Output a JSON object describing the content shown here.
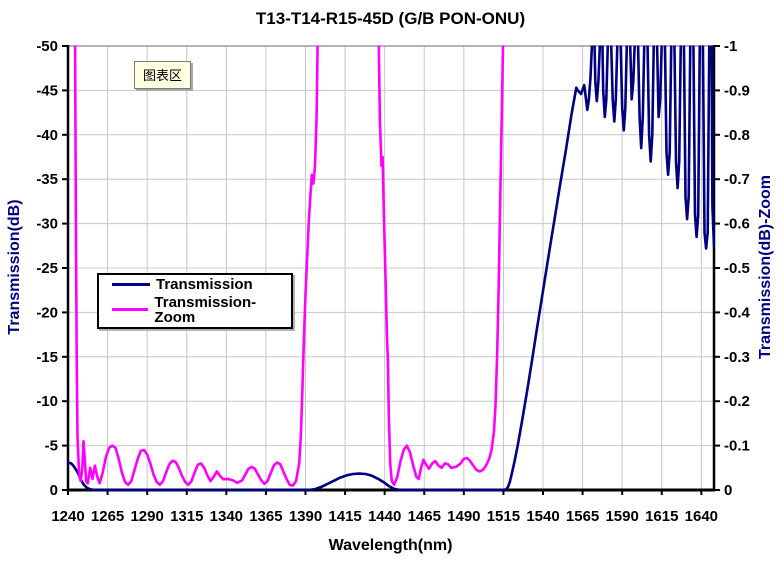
{
  "title": "T13-T14-R15-45D (G/B PON-ONU)",
  "tooltip": {
    "text": "图表区"
  },
  "legend": {
    "position": "inside-left",
    "items": [
      {
        "label": "Transmission",
        "color": "#000080"
      },
      {
        "label": "Transmission-Zoom",
        "color": "#FF00FF"
      }
    ]
  },
  "colors": {
    "background": "#FFFFFF",
    "grid": "#C7C7C7",
    "axis": "#000000",
    "plot_top_border": "#9C9C9C",
    "axis_title": "#000080",
    "tooltip_bg": "#FFFFE1",
    "series_transmission": "#000080",
    "series_transmission_zoom": "#FF00FF"
  },
  "chart_data": {
    "type": "line",
    "title": "T13-T14-R15-45D (G/B PON-ONU)",
    "grid": true,
    "legend_position": "inside-left",
    "x_axis": {
      "label": "Wavelength(nm)",
      "min": 1240,
      "max": 1648,
      "tick_values": [
        1240,
        1265,
        1290,
        1315,
        1340,
        1365,
        1390,
        1415,
        1440,
        1465,
        1490,
        1515,
        1540,
        1565,
        1590,
        1615,
        1640
      ],
      "tick_labels": [
        "1240",
        "1265",
        "1290",
        "1315",
        "1340",
        "1365",
        "1390",
        "1415",
        "1440",
        "1465",
        "1490",
        "1515",
        "1540",
        "1565",
        "1590",
        "1615",
        "1640"
      ]
    },
    "y_left": {
      "label": "Transmission(dB)",
      "min": -50,
      "max": 0,
      "tick_values": [
        -50,
        -45,
        -40,
        -35,
        -30,
        -25,
        -20,
        -15,
        -10,
        -5,
        0
      ],
      "tick_labels": [
        "-50",
        "-45",
        "-40",
        "-35",
        "-30",
        "-25",
        "-20",
        "-15",
        "-10",
        "-5",
        "0"
      ]
    },
    "y_right": {
      "label": "Transmission(dB)-Zoom",
      "min": -1,
      "max": 0,
      "tick_values": [
        -1,
        -0.9,
        -0.8,
        -0.7,
        -0.6,
        -0.5,
        -0.4,
        -0.3,
        -0.2,
        -0.1,
        0
      ],
      "tick_labels": [
        "-1",
        "-0.9",
        "-0.8",
        "-0.7",
        "-0.6",
        "-0.5",
        "-0.4",
        "-0.3",
        "-0.2",
        "-0.1",
        "0"
      ]
    },
    "series": [
      {
        "name": "Transmission",
        "axis": "left",
        "color": "#000080",
        "points": [
          [
            1240,
            -3.1
          ],
          [
            1242,
            -3.0
          ],
          [
            1244,
            -2.6
          ],
          [
            1246,
            -2.0
          ],
          [
            1248,
            -1.2
          ],
          [
            1250,
            -0.6
          ],
          [
            1252,
            -0.25
          ],
          [
            1254,
            -0.08
          ],
          [
            1256,
            -0.02
          ],
          [
            1260,
            0
          ],
          [
            1300,
            0
          ],
          [
            1340,
            0
          ],
          [
            1380,
            0
          ],
          [
            1392,
            0
          ],
          [
            1396,
            -0.1
          ],
          [
            1400,
            -0.35
          ],
          [
            1404,
            -0.7
          ],
          [
            1408,
            -1.05
          ],
          [
            1412,
            -1.4
          ],
          [
            1416,
            -1.65
          ],
          [
            1420,
            -1.8
          ],
          [
            1424,
            -1.85
          ],
          [
            1428,
            -1.8
          ],
          [
            1432,
            -1.6
          ],
          [
            1436,
            -1.25
          ],
          [
            1440,
            -0.8
          ],
          [
            1443,
            -0.4
          ],
          [
            1446,
            -0.12
          ],
          [
            1449,
            -0.02
          ],
          [
            1452,
            0
          ],
          [
            1470,
            0
          ],
          [
            1495,
            0
          ],
          [
            1515,
            0
          ],
          [
            1517,
            -0.1
          ],
          [
            1518,
            -0.4
          ],
          [
            1519,
            -0.9
          ],
          [
            1520,
            -1.6
          ],
          [
            1522,
            -3.2
          ],
          [
            1524,
            -5
          ],
          [
            1527,
            -8
          ],
          [
            1530,
            -11.2
          ],
          [
            1533,
            -14.5
          ],
          [
            1536,
            -18
          ],
          [
            1539,
            -21.3
          ],
          [
            1542,
            -24.7
          ],
          [
            1545,
            -28
          ],
          [
            1548,
            -31.3
          ],
          [
            1551,
            -34.6
          ],
          [
            1554,
            -37.8
          ],
          [
            1556,
            -40
          ],
          [
            1558,
            -42.3
          ],
          [
            1560,
            -44.3
          ],
          [
            1561,
            -45.3
          ],
          [
            1562,
            -45
          ],
          [
            1564,
            -44.6
          ],
          [
            1566,
            -45.6
          ],
          [
            1567,
            -44.2
          ],
          [
            1568,
            -42.8
          ],
          [
            1569,
            -44
          ],
          [
            1570,
            -46.5
          ],
          [
            1571,
            -50.5
          ],
          [
            1572.5,
            -50.5
          ],
          [
            1573,
            -46
          ],
          [
            1574,
            -43.8
          ],
          [
            1575,
            -46
          ],
          [
            1576,
            -50.5
          ],
          [
            1577.5,
            -50.5
          ],
          [
            1578,
            -45
          ],
          [
            1579,
            -42
          ],
          [
            1580,
            -44
          ],
          [
            1581,
            -50.5
          ],
          [
            1583,
            -50.5
          ],
          [
            1584,
            -44
          ],
          [
            1585,
            -41.5
          ],
          [
            1586,
            -44
          ],
          [
            1587,
            -50.5
          ],
          [
            1589,
            -50.5
          ],
          [
            1590,
            -43
          ],
          [
            1591,
            -40.5
          ],
          [
            1592,
            -43
          ],
          [
            1593,
            -50.5
          ],
          [
            1595,
            -50.5
          ],
          [
            1596,
            -44
          ],
          [
            1597,
            -46
          ],
          [
            1598,
            -50.5
          ],
          [
            1600,
            -50.5
          ],
          [
            1601,
            -42
          ],
          [
            1602,
            -38.5
          ],
          [
            1603,
            -42
          ],
          [
            1604,
            -50.5
          ],
          [
            1606,
            -50.5
          ],
          [
            1607,
            -40
          ],
          [
            1608,
            -37
          ],
          [
            1609,
            -40
          ],
          [
            1610,
            -50.5
          ],
          [
            1612,
            -50.5
          ],
          [
            1613,
            -42
          ],
          [
            1614,
            -44
          ],
          [
            1615,
            -50.5
          ],
          [
            1617,
            -50.5
          ],
          [
            1618,
            -38
          ],
          [
            1619,
            -35.5
          ],
          [
            1620,
            -38
          ],
          [
            1621,
            -50.5
          ],
          [
            1623,
            -50.5
          ],
          [
            1624,
            -37
          ],
          [
            1625,
            -34
          ],
          [
            1626,
            -37
          ],
          [
            1627,
            -50.5
          ],
          [
            1629,
            -50.5
          ],
          [
            1630,
            -33
          ],
          [
            1631,
            -30.5
          ],
          [
            1632,
            -33
          ],
          [
            1633,
            -50.5
          ],
          [
            1635,
            -50.5
          ],
          [
            1636,
            -31
          ],
          [
            1637,
            -28.5
          ],
          [
            1638,
            -31
          ],
          [
            1639,
            -50.5
          ],
          [
            1641,
            -50.5
          ],
          [
            1642,
            -29
          ],
          [
            1643,
            -27.2
          ],
          [
            1644,
            -29
          ],
          [
            1645,
            -50.5
          ],
          [
            1646.5,
            -50.5
          ],
          [
            1647,
            -32
          ],
          [
            1648,
            -27.5
          ]
        ]
      },
      {
        "name": "Transmission-Zoom",
        "axis": "right",
        "color": "#FF00FF",
        "points": [
          [
            1243.5,
            -1.4
          ],
          [
            1244.5,
            -1.0
          ],
          [
            1245,
            -0.6
          ],
          [
            1245.5,
            -0.3
          ],
          [
            1246,
            -0.12
          ],
          [
            1247,
            -0.035
          ],
          [
            1248,
            -0.02
          ],
          [
            1249,
            -0.05
          ],
          [
            1249.8,
            -0.11
          ],
          [
            1250.6,
            -0.07
          ],
          [
            1251.4,
            -0.02
          ],
          [
            1252.5,
            -0.015
          ],
          [
            1254,
            -0.05
          ],
          [
            1255.5,
            -0.025
          ],
          [
            1257,
            -0.055
          ],
          [
            1258.5,
            -0.03
          ],
          [
            1260,
            -0.015
          ],
          [
            1262,
            -0.04
          ],
          [
            1264,
            -0.075
          ],
          [
            1266,
            -0.095
          ],
          [
            1268,
            -0.1
          ],
          [
            1270,
            -0.095
          ],
          [
            1272,
            -0.07
          ],
          [
            1274,
            -0.04
          ],
          [
            1276,
            -0.018
          ],
          [
            1278,
            -0.012
          ],
          [
            1280,
            -0.02
          ],
          [
            1282,
            -0.045
          ],
          [
            1284,
            -0.07
          ],
          [
            1286,
            -0.088
          ],
          [
            1288,
            -0.09
          ],
          [
            1290,
            -0.08
          ],
          [
            1292,
            -0.06
          ],
          [
            1294,
            -0.035
          ],
          [
            1296,
            -0.018
          ],
          [
            1298,
            -0.012
          ],
          [
            1300,
            -0.02
          ],
          [
            1302,
            -0.04
          ],
          [
            1304,
            -0.058
          ],
          [
            1306,
            -0.066
          ],
          [
            1308,
            -0.063
          ],
          [
            1310,
            -0.05
          ],
          [
            1312,
            -0.032
          ],
          [
            1314,
            -0.018
          ],
          [
            1316,
            -0.012
          ],
          [
            1318,
            -0.02
          ],
          [
            1320,
            -0.04
          ],
          [
            1322,
            -0.057
          ],
          [
            1324,
            -0.06
          ],
          [
            1326,
            -0.05
          ],
          [
            1328,
            -0.033
          ],
          [
            1330,
            -0.02
          ],
          [
            1332,
            -0.03
          ],
          [
            1334,
            -0.042
          ],
          [
            1336,
            -0.032
          ],
          [
            1338,
            -0.024
          ],
          [
            1341,
            -0.025
          ],
          [
            1344,
            -0.022
          ],
          [
            1347,
            -0.016
          ],
          [
            1350,
            -0.022
          ],
          [
            1352,
            -0.035
          ],
          [
            1354,
            -0.048
          ],
          [
            1356,
            -0.052
          ],
          [
            1358,
            -0.048
          ],
          [
            1360,
            -0.035
          ],
          [
            1362,
            -0.022
          ],
          [
            1364,
            -0.014
          ],
          [
            1366,
            -0.02
          ],
          [
            1368,
            -0.038
          ],
          [
            1370,
            -0.055
          ],
          [
            1372,
            -0.062
          ],
          [
            1374,
            -0.058
          ],
          [
            1376,
            -0.042
          ],
          [
            1378,
            -0.025
          ],
          [
            1380,
            -0.012
          ],
          [
            1382,
            -0.01
          ],
          [
            1384,
            -0.02
          ],
          [
            1386,
            -0.06
          ],
          [
            1387,
            -0.12
          ],
          [
            1388,
            -0.22
          ],
          [
            1389,
            -0.34
          ],
          [
            1390,
            -0.44
          ],
          [
            1391,
            -0.52
          ],
          [
            1392,
            -0.6
          ],
          [
            1393,
            -0.66
          ],
          [
            1394,
            -0.71
          ],
          [
            1395,
            -0.69
          ],
          [
            1396,
            -0.73
          ],
          [
            1397,
            -0.84
          ],
          [
            1397.7,
            -1.02
          ],
          [
            1398,
            -1.35
          ],
          [
            1435.5,
            -1.35
          ],
          [
            1436.3,
            -1.0
          ],
          [
            1437,
            -0.83
          ],
          [
            1438,
            -0.73
          ],
          [
            1438.7,
            -0.75
          ],
          [
            1439.5,
            -0.62
          ],
          [
            1440.5,
            -0.48
          ],
          [
            1441.5,
            -0.34
          ],
          [
            1442,
            -0.3
          ],
          [
            1442.7,
            -0.16
          ],
          [
            1443.5,
            -0.06
          ],
          [
            1444.5,
            -0.02
          ],
          [
            1446,
            -0.012
          ],
          [
            1448,
            -0.03
          ],
          [
            1450,
            -0.065
          ],
          [
            1452,
            -0.09
          ],
          [
            1454,
            -0.1
          ],
          [
            1456,
            -0.085
          ],
          [
            1458,
            -0.055
          ],
          [
            1460,
            -0.03
          ],
          [
            1461.5,
            -0.025
          ],
          [
            1463,
            -0.05
          ],
          [
            1464.5,
            -0.068
          ],
          [
            1466,
            -0.058
          ],
          [
            1468,
            -0.048
          ],
          [
            1470,
            -0.06
          ],
          [
            1472,
            -0.065
          ],
          [
            1474,
            -0.055
          ],
          [
            1476,
            -0.05
          ],
          [
            1478,
            -0.06
          ],
          [
            1480,
            -0.058
          ],
          [
            1482,
            -0.05
          ],
          [
            1485,
            -0.052
          ],
          [
            1488,
            -0.06
          ],
          [
            1490,
            -0.07
          ],
          [
            1492,
            -0.072
          ],
          [
            1494,
            -0.065
          ],
          [
            1496,
            -0.055
          ],
          [
            1498,
            -0.045
          ],
          [
            1500,
            -0.042
          ],
          [
            1502,
            -0.045
          ],
          [
            1504,
            -0.055
          ],
          [
            1506,
            -0.07
          ],
          [
            1507.5,
            -0.09
          ],
          [
            1509,
            -0.13
          ],
          [
            1510,
            -0.19
          ],
          [
            1511,
            -0.3
          ],
          [
            1512,
            -0.46
          ],
          [
            1513,
            -0.65
          ],
          [
            1514,
            -0.85
          ],
          [
            1515,
            -1.05
          ],
          [
            1515.5,
            -1.4
          ]
        ]
      }
    ]
  }
}
